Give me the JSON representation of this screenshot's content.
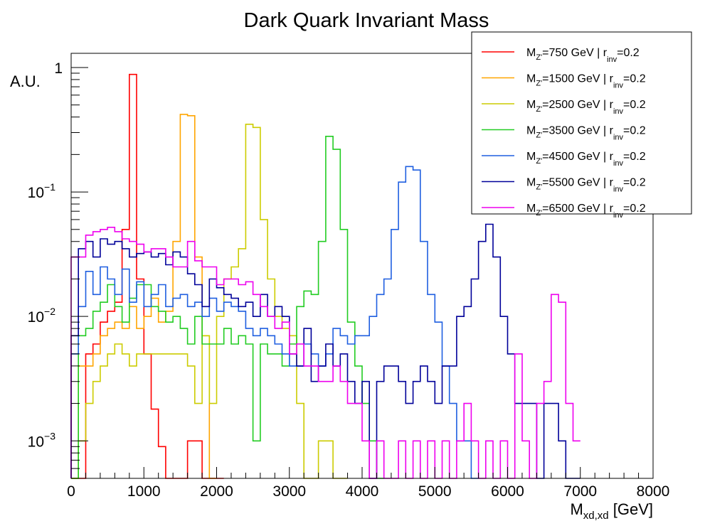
{
  "chart_data": {
    "type": "line",
    "title": "Dark Quark Invariant Mass",
    "ylabel": "A.U.",
    "xlabel": {
      "main": "M",
      "sub": "xd,xd",
      "unit": " [GeV]"
    },
    "xlim": [
      0,
      8000
    ],
    "ylim": [
      0.0005,
      1.3
    ],
    "y_scale": "log",
    "grid": false,
    "bin_width": 100,
    "x_ticks": [
      0,
      1000,
      2000,
      3000,
      4000,
      5000,
      6000,
      7000,
      8000
    ],
    "y_ticks": [
      {
        "value": 1,
        "base": "1",
        "exp": ""
      },
      {
        "value": 0.1,
        "base": "10",
        "exp": "−1"
      },
      {
        "value": 0.01,
        "base": "10",
        "exp": "−2"
      },
      {
        "value": 0.001,
        "base": "10",
        "exp": "−3"
      }
    ],
    "legend_position": "top-right",
    "series": [
      {
        "name_main": "M",
        "name_sub": "Z'",
        "name_mid": "=750 GeV | r",
        "name_sub2": "inv",
        "name_end": "=0.2",
        "color": "#ff0000",
        "values": [
          0.0005,
          0.0005,
          0.005,
          0.006,
          0.009,
          0.011,
          0.013,
          0.05,
          0.88,
          0.02,
          0.005,
          0.0018,
          0.0009,
          0.0005,
          0.0005,
          0.0005,
          0.001,
          0.001,
          0.0005,
          0.0005,
          0.0005
        ]
      },
      {
        "name_main": "M",
        "name_sub": "Z'",
        "name_mid": "=1500 GeV | r",
        "name_sub2": "inv",
        "name_end": "=0.2",
        "color": "#ffa500",
        "values": [
          0.0005,
          0.004,
          0.004,
          0.005,
          0.007,
          0.008,
          0.009,
          0.008,
          0.012,
          0.008,
          0.01,
          0.014,
          0.009,
          0.011,
          0.04,
          0.42,
          0.41,
          0.03,
          0.007,
          0.0005
        ]
      },
      {
        "name_main": "M",
        "name_sub": "Z'",
        "name_mid": "=2500 GeV | r",
        "name_sub2": "inv",
        "name_end": "=0.2",
        "color": "#cccc00",
        "values": [
          0.0005,
          0.001,
          0.002,
          0.003,
          0.004,
          0.005,
          0.006,
          0.005,
          0.004,
          0.005,
          0.005,
          0.005,
          0.005,
          0.005,
          0.005,
          0.005,
          0.004,
          0.002,
          0.007,
          0.002,
          0.01,
          0.02,
          0.025,
          0.035,
          0.35,
          0.33,
          0.06,
          0.02,
          0.01,
          0.008,
          0.007,
          0.002,
          0.0005,
          0.0005,
          0.001,
          0.001,
          0.0005,
          0.0005
        ]
      },
      {
        "name_main": "M",
        "name_sub": "Z'",
        "name_mid": "=3500 GeV | r",
        "name_sub2": "inv",
        "name_end": "=0.2",
        "color": "#22cc22",
        "values": [
          0.0005,
          0.007,
          0.008,
          0.011,
          0.013,
          0.018,
          0.012,
          0.009,
          0.014,
          0.018,
          0.018,
          0.012,
          0.011,
          0.009,
          0.01,
          0.008,
          0.006,
          0.01,
          0.006,
          0.006,
          0.006,
          0.008,
          0.006,
          0.007,
          0.006,
          0.001,
          0.006,
          0.005,
          0.005,
          0.004,
          0.006,
          0.012,
          0.016,
          0.015,
          0.04,
          0.28,
          0.22,
          0.05,
          0.009,
          0.004,
          0.002,
          0.001,
          0.0005
        ]
      },
      {
        "name_main": "M",
        "name_sub": "Z'",
        "name_mid": "=4500 GeV | r",
        "name_sub2": "inv",
        "name_end": "=0.2",
        "color": "#1f5fe0",
        "values": [
          0.005,
          0.012,
          0.023,
          0.015,
          0.025,
          0.02,
          0.015,
          0.024,
          0.013,
          0.019,
          0.012,
          0.015,
          0.018,
          0.012,
          0.014,
          0.015,
          0.012,
          0.013,
          0.01,
          0.014,
          0.011,
          0.013,
          0.012,
          0.011,
          0.008,
          0.007,
          0.008,
          0.007,
          0.006,
          0.005,
          0.004,
          0.004,
          0.006,
          0.005,
          0.004,
          0.005,
          0.008,
          0.007,
          0.006,
          0.007,
          0.007,
          0.01,
          0.015,
          0.02,
          0.05,
          0.12,
          0.16,
          0.15,
          0.04,
          0.015,
          0.009,
          0.004,
          0.002,
          0.001,
          0.001,
          0.0005
        ]
      },
      {
        "name_main": "M",
        "name_sub": "Z'",
        "name_mid": "=5500 GeV | r",
        "name_sub2": "inv",
        "name_end": "=0.2",
        "color": "#000099",
        "values": [
          0.007,
          0.035,
          0.04,
          0.03,
          0.042,
          0.038,
          0.04,
          0.035,
          0.03,
          0.032,
          0.033,
          0.03,
          0.032,
          0.026,
          0.033,
          0.03,
          0.022,
          0.018,
          0.012,
          0.02,
          0.017,
          0.015,
          0.014,
          0.012,
          0.013,
          0.01,
          0.015,
          0.01,
          0.012,
          0.01,
          0.005,
          0.004,
          0.008,
          0.003,
          0.004,
          0.006,
          0.004,
          0.005,
          0.003,
          0.002,
          0.003,
          0.0005,
          0.003,
          0.004,
          0.004,
          0.003,
          0.002,
          0.003,
          0.004,
          0.003,
          0.002,
          0.004,
          0.004,
          0.01,
          0.012,
          0.02,
          0.04,
          0.055,
          0.03,
          0.01,
          0.005,
          0.002,
          0.002,
          0.002,
          0.0005,
          0.002,
          0.002,
          0.001,
          0.0005,
          0.0005
        ]
      },
      {
        "name_main": "M",
        "name_sub": "Z'",
        "name_mid": "=6500 GeV | r",
        "name_sub2": "inv",
        "name_end": "=0.2",
        "color": "#ee00ee",
        "values": [
          0.03,
          0.03,
          0.045,
          0.048,
          0.05,
          0.052,
          0.048,
          0.042,
          0.04,
          0.038,
          0.033,
          0.035,
          0.035,
          0.03,
          0.025,
          0.025,
          0.04,
          0.028,
          0.025,
          0.025,
          0.018,
          0.02,
          0.02,
          0.018,
          0.019,
          0.015,
          0.012,
          0.01,
          0.008,
          0.009,
          0.005,
          0.006,
          0.004,
          0.004,
          0.003,
          0.003,
          0.004,
          0.003,
          0.002,
          0.002,
          0.001,
          0.0005,
          0.001,
          0.0005,
          0.0005,
          0.001,
          0.0005,
          0.001,
          0.0005,
          0.001,
          0.0005,
          0.001,
          0.0005,
          0.001,
          0.002,
          0.001,
          0.0005,
          0.001,
          0.0005,
          0.001,
          0.0005,
          0.005,
          0.001,
          0.0005,
          0.002,
          0.003,
          0.015,
          0.013,
          0.002,
          0.001
        ]
      }
    ]
  }
}
